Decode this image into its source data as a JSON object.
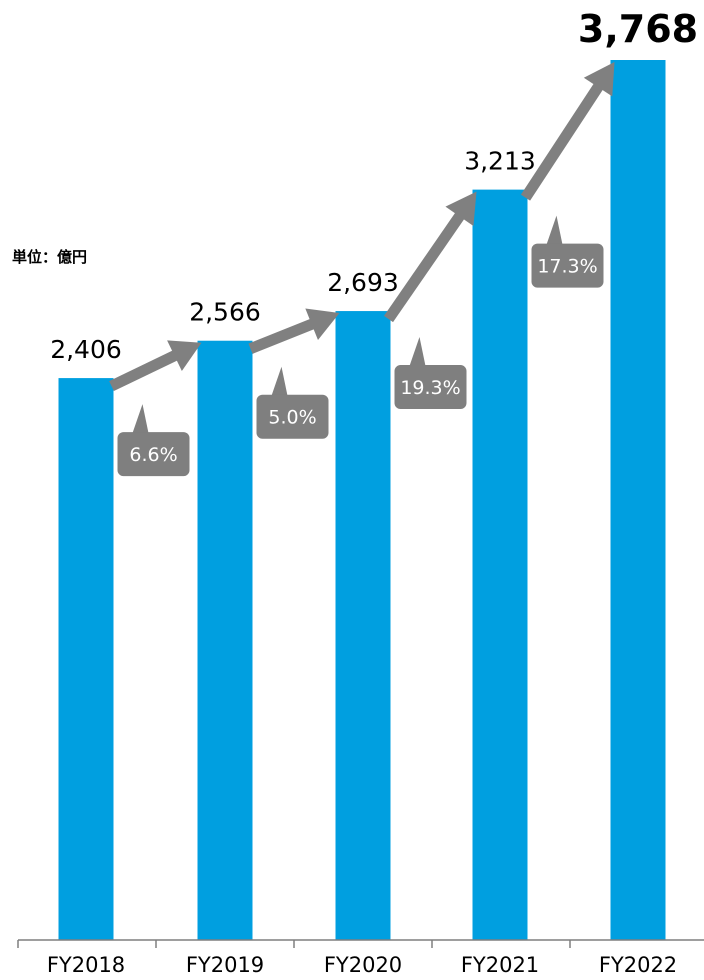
{
  "chart_data": {
    "type": "bar",
    "title": "",
    "unit_label": "単位：億円",
    "categories": [
      "FY2018",
      "FY2019",
      "FY2020",
      "FY2021",
      "FY2022"
    ],
    "values": [
      2406,
      2566,
      2693,
      3213,
      3768
    ],
    "value_labels": [
      "2,406",
      "2,566",
      "2,693",
      "3,213",
      "3,768"
    ],
    "growth_rates": [
      "6.6%",
      "5.0%",
      "19.3%",
      "17.3%"
    ],
    "ylim": [
      0,
      3768
    ],
    "xlabel": "",
    "ylabel": "",
    "grid": false,
    "colors": {
      "bar": "#009fe0",
      "arrow": "#808080",
      "callout": "#7f7f7f",
      "axis": "#7f7f7f"
    }
  }
}
